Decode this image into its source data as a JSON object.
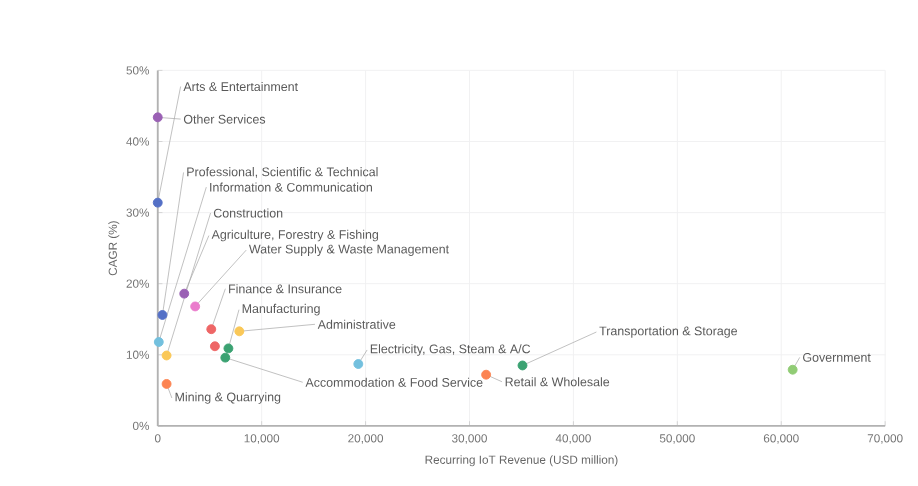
{
  "chart_data": {
    "type": "scatter",
    "xlabel": "Recurring IoT Revenue (USD million)",
    "ylabel": "CAGR (%)",
    "xlim": [
      0,
      70000
    ],
    "ylim": [
      0,
      50
    ],
    "xticks": [
      {
        "value": 0,
        "label": "0"
      },
      {
        "value": 10000,
        "label": "10,000"
      },
      {
        "value": 20000,
        "label": "20,000"
      },
      {
        "value": 30000,
        "label": "30,000"
      },
      {
        "value": 40000,
        "label": "40,000"
      },
      {
        "value": 50000,
        "label": "50,000"
      },
      {
        "value": 60000,
        "label": "60,000"
      },
      {
        "value": 70000,
        "label": "70,000"
      }
    ],
    "yticks": [
      {
        "value": 0,
        "label": "0%"
      },
      {
        "value": 10,
        "label": "10%"
      },
      {
        "value": 20,
        "label": "20%"
      },
      {
        "value": 30,
        "label": "30%"
      },
      {
        "value": 40,
        "label": "40%"
      },
      {
        "value": 50,
        "label": "50%"
      }
    ],
    "grid": true,
    "series": [
      {
        "name": "Arts & Entertainment",
        "color": "#5470c6",
        "x": [
          0
        ],
        "values": [
          31.4
        ]
      },
      {
        "name": "Other Services",
        "color": "#9a60b4",
        "x": [
          0
        ],
        "values": [
          43.4
        ]
      },
      {
        "name": "Professional, Scientific & Technical",
        "color": "#5470c6",
        "x": [
          450
        ],
        "values": [
          15.6
        ]
      },
      {
        "name": "Information & Communication",
        "color": "#73c0de",
        "x": [
          100
        ],
        "values": [
          11.8
        ]
      },
      {
        "name": "Construction",
        "color": "#fac858",
        "x": [
          850
        ],
        "values": [
          9.9
        ]
      },
      {
        "name": "Agriculture, Forestry & Fishing",
        "color": "#9a60b4",
        "x": [
          2550
        ],
        "values": [
          18.6
        ]
      },
      {
        "name": "Water Supply & Waste Management",
        "color": "#ea7ccc",
        "x": [
          3600
        ],
        "values": [
          16.8
        ]
      },
      {
        "name": "Finance & Insurance",
        "color": "#ee6666",
        "x": [
          5150
        ],
        "values": [
          13.6
        ]
      },
      {
        "name": "Manufacturing",
        "color": "#3ba272",
        "x": [
          6800
        ],
        "values": [
          10.9
        ]
      },
      {
        "name": "Administrative",
        "color": "#fac858",
        "x": [
          7850
        ],
        "values": [
          13.3
        ]
      },
      {
        "name": "Electricity, Gas, Steam & A/C",
        "color": "#73c0de",
        "x": [
          19300
        ],
        "values": [
          8.7
        ]
      },
      {
        "name": "Transportation & Storage",
        "color": "#3ba272",
        "x": [
          35100
        ],
        "values": [
          8.5
        ]
      },
      {
        "name": "Government",
        "color": "#91cc75",
        "x": [
          61100
        ],
        "values": [
          7.9
        ]
      },
      {
        "name": "Retail & Wholesale",
        "color": "#fc8452",
        "x": [
          31600
        ],
        "values": [
          7.2
        ]
      },
      {
        "name": "Accommodation & Food Service",
        "color": "#3ba272",
        "x": [
          6500
        ],
        "values": [
          9.6
        ]
      },
      {
        "name": "Mining & Quarrying",
        "color": "#fc8452",
        "x": [
          850
        ],
        "values": [
          5.9
        ]
      },
      {
        "color": "#ee6666",
        "x": [
          5500
        ],
        "values": [
          11.2
        ]
      }
    ]
  }
}
